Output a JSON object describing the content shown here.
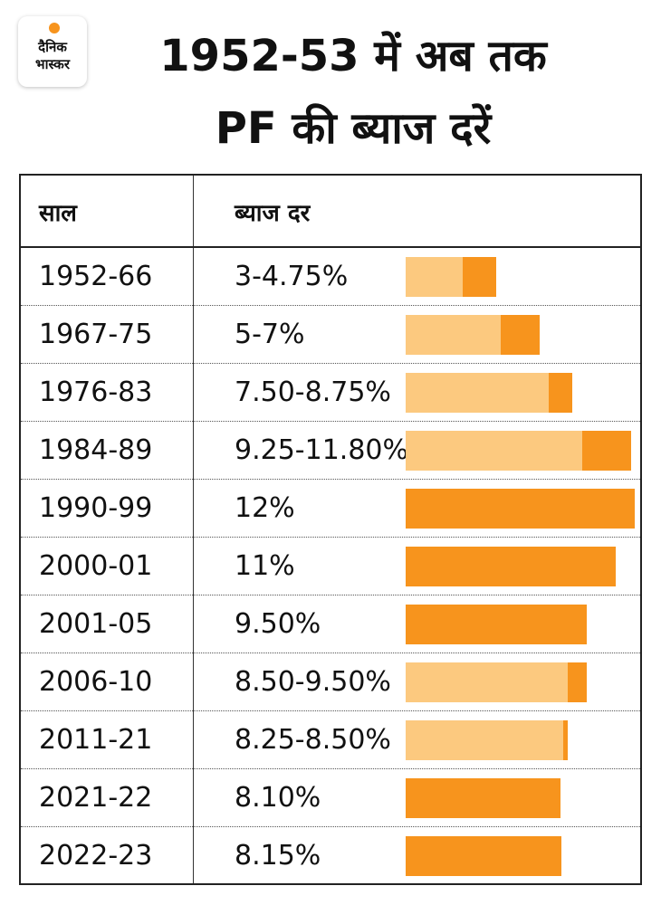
{
  "logo": {
    "line1": "दैनिक",
    "line2": "भास्कर"
  },
  "title": {
    "line1": "1952-53 में अब तक",
    "line2": "PF की ब्याज दरें"
  },
  "colors": {
    "accent": "#f7941d",
    "light": "#fcc97f"
  },
  "chart_data": {
    "type": "table",
    "columns": [
      "साल",
      "ब्याज दर"
    ],
    "xlim": [
      0,
      12
    ],
    "rows": [
      {
        "year": "1952-66",
        "rate": "3-4.75%",
        "low": 3.0,
        "high": 4.75
      },
      {
        "year": "1967-75",
        "rate": "5-7%",
        "low": 5.0,
        "high": 7.0
      },
      {
        "year": "1976-83",
        "rate": "7.50-8.75%",
        "low": 7.5,
        "high": 8.75
      },
      {
        "year": "1984-89",
        "rate": "9.25-11.80%",
        "low": 9.25,
        "high": 11.8
      },
      {
        "year": "1990-99",
        "rate": "12%",
        "low": 12.0,
        "high": 12.0
      },
      {
        "year": "2000-01",
        "rate": "11%",
        "low": 11.0,
        "high": 11.0
      },
      {
        "year": "2001-05",
        "rate": "9.50%",
        "low": 9.5,
        "high": 9.5
      },
      {
        "year": "2006-10",
        "rate": "8.50-9.50%",
        "low": 8.5,
        "high": 9.5
      },
      {
        "year": "2011-21",
        "rate": "8.25-8.50%",
        "low": 8.25,
        "high": 8.5
      },
      {
        "year": "2021-22",
        "rate": "8.10%",
        "low": 8.1,
        "high": 8.1
      },
      {
        "year": "2022-23",
        "rate": "8.15%",
        "low": 8.15,
        "high": 8.15
      }
    ]
  }
}
